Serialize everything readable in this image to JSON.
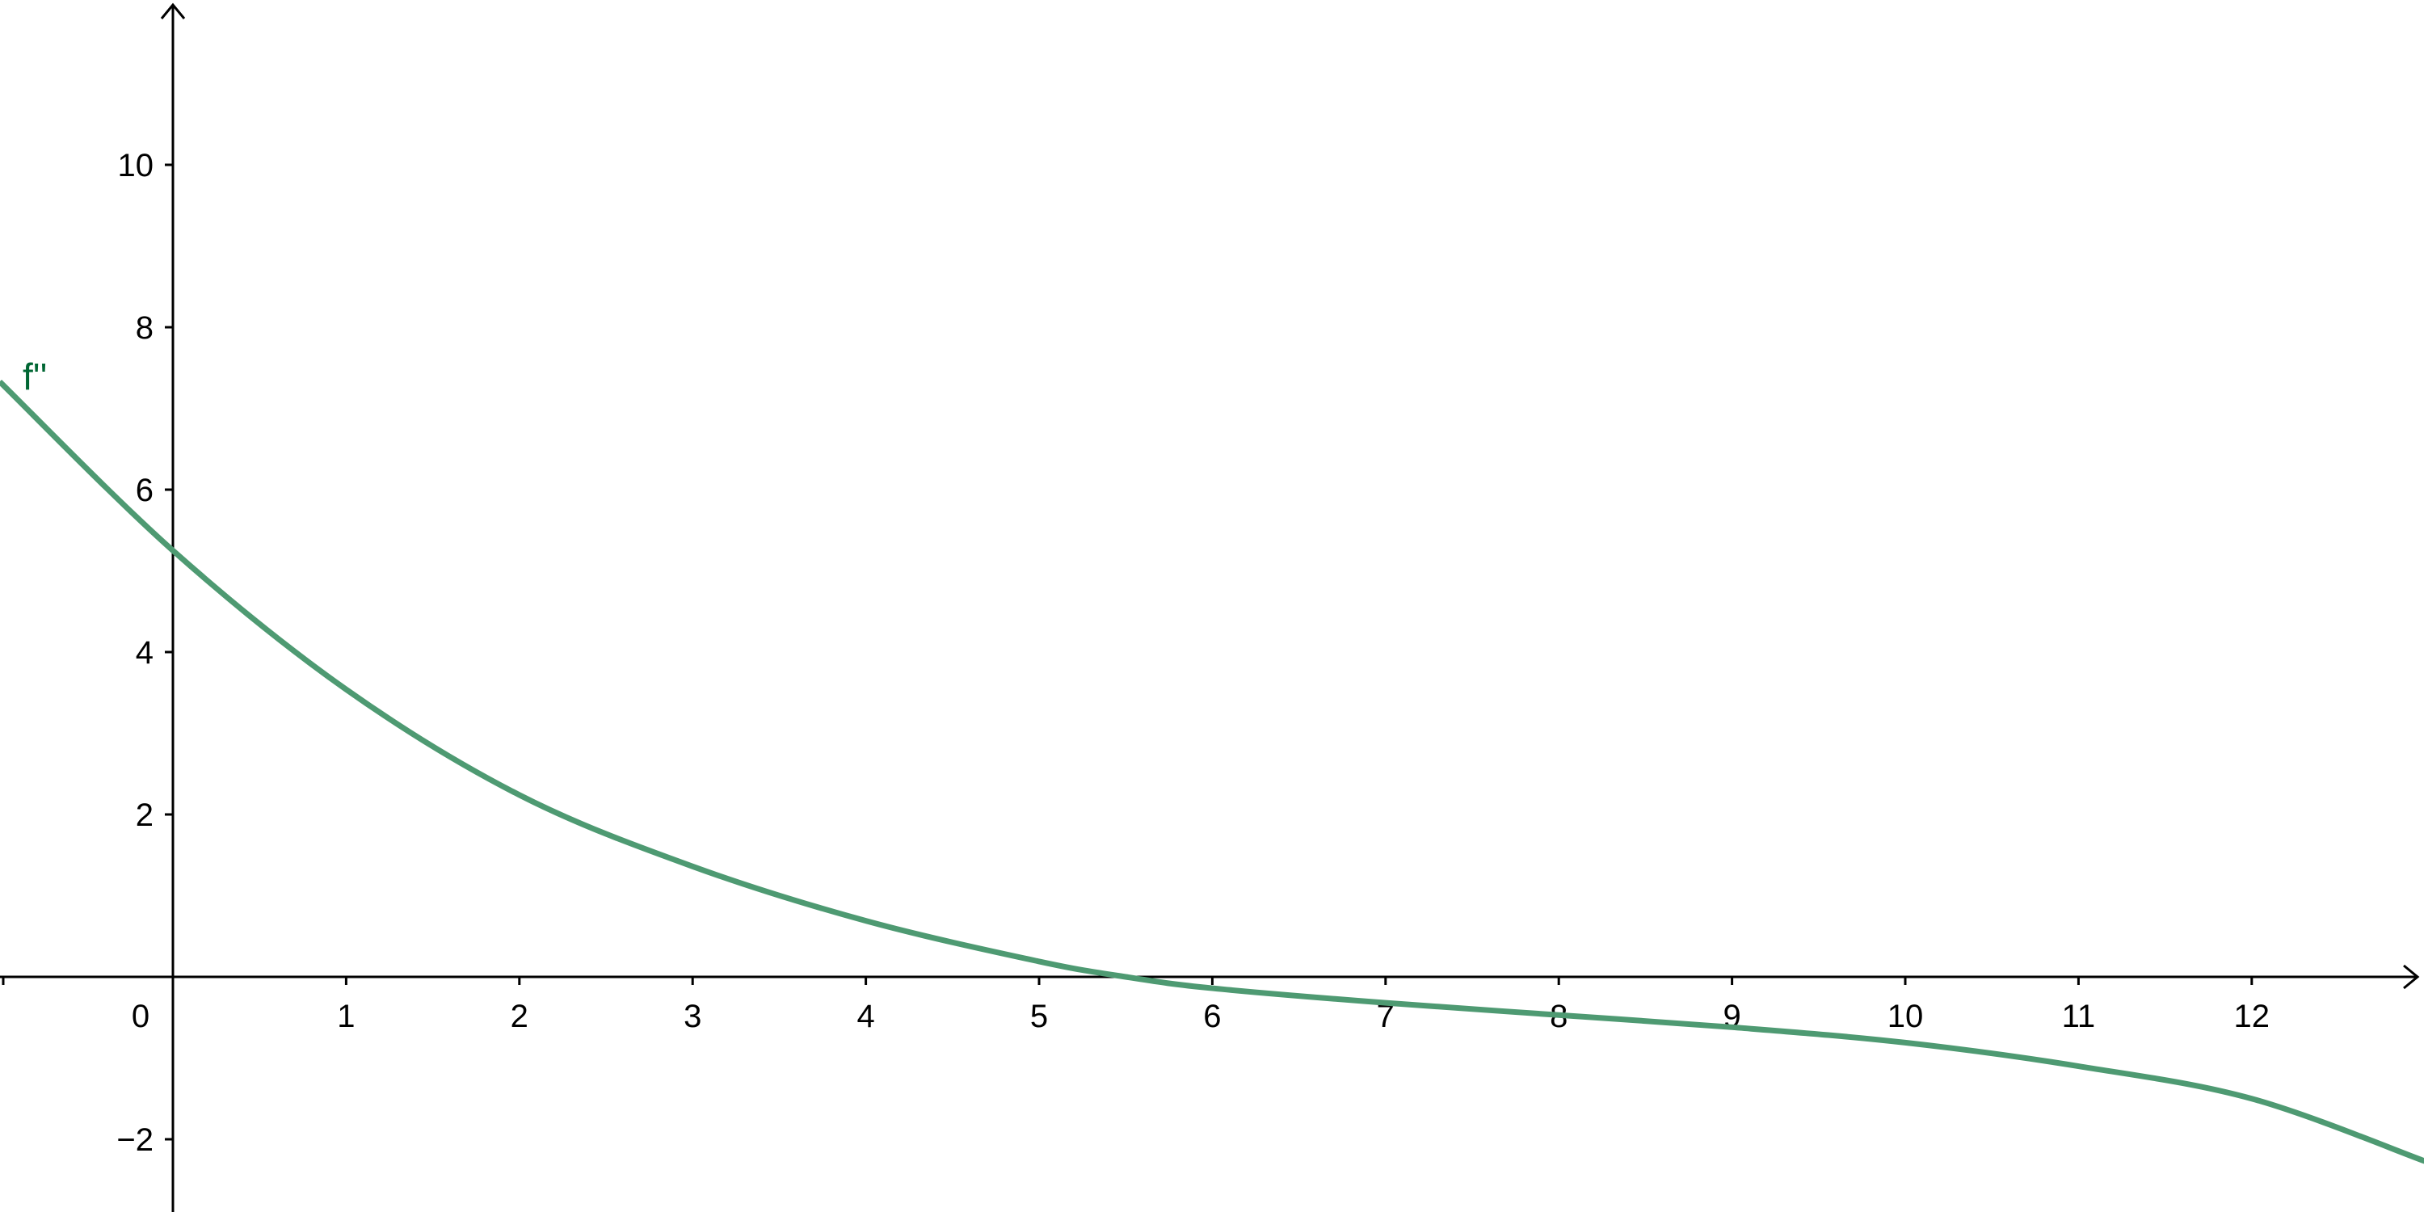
{
  "chart_data": {
    "type": "line",
    "title": "",
    "xlabel": "",
    "ylabel": "",
    "xlim": [
      -1,
      13
    ],
    "ylim": [
      -2.9,
      12
    ],
    "grid": false,
    "x_ticks": [
      0,
      1,
      2,
      3,
      4,
      5,
      6,
      7,
      8,
      9,
      10,
      11,
      12
    ],
    "x_tick_labels": [
      "0",
      "1",
      "2",
      "3",
      "4",
      "5",
      "6",
      "7",
      "8",
      "9",
      "10",
      "11",
      "12"
    ],
    "y_ticks": [
      -2,
      2,
      4,
      6,
      8,
      10
    ],
    "y_tick_labels": [
      "−2",
      "2",
      "4",
      "6",
      "8",
      "10"
    ],
    "series": [
      {
        "name": "f''",
        "color": "#4e9a72",
        "label_color": "#006633",
        "x": [
          -1,
          0,
          1,
          2,
          3,
          4,
          5,
          5.5,
          6,
          7,
          8,
          9,
          10,
          11,
          12,
          13
        ],
        "y": [
          7.33,
          5.25,
          3.54,
          2.24,
          1.36,
          0.69,
          0.19,
          0.0,
          -0.14,
          -0.32,
          -0.47,
          -0.62,
          -0.81,
          -1.1,
          -1.5,
          -2.27
        ]
      }
    ]
  }
}
